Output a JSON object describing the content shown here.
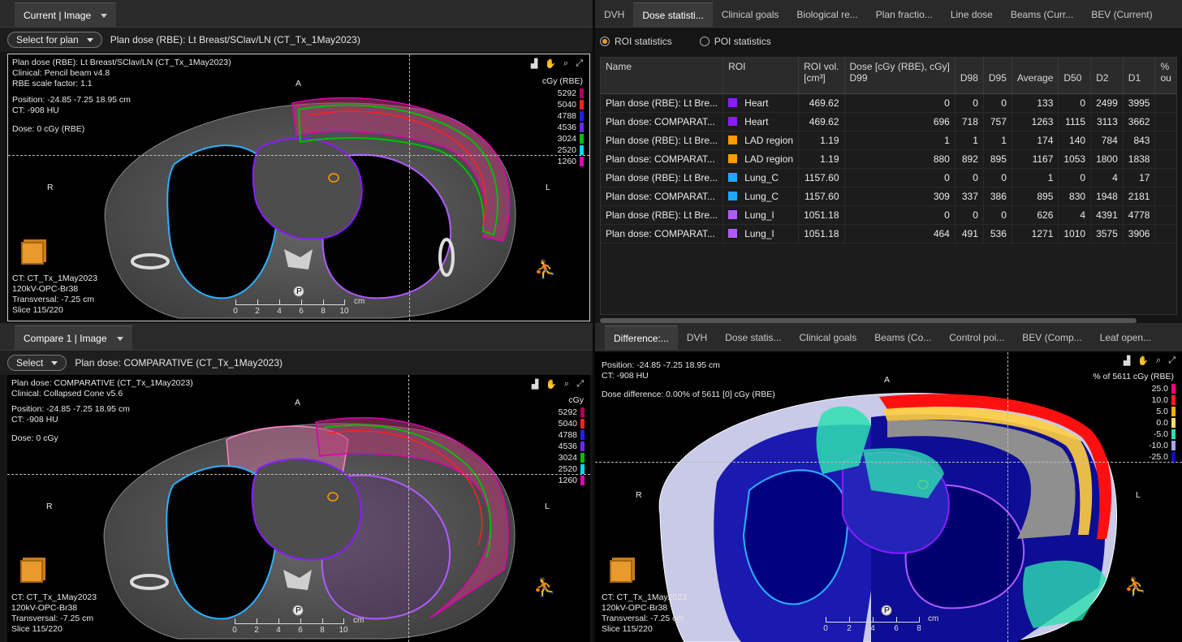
{
  "panes": {
    "current": {
      "tab": "Current | Image",
      "select_button": "Select for plan",
      "plan_label": "Plan dose (RBE): Lt Breast/SClav/LN (CT_Tx_1May2023)",
      "info": [
        "Plan dose (RBE): Lt Breast/SClav/LN (CT_Tx_1May2023)",
        "Clinical: Pencil beam v4.8",
        "RBE scale factor: 1.1"
      ],
      "position": "Position: -24.85 -7.25 18.95 cm",
      "ct_value": "CT: -908 HU",
      "dose": "Dose: 0 cGy (RBE)",
      "legend_unit": "cGy (RBE)",
      "legend": [
        {
          "value": "5292",
          "color": "#b0005a"
        },
        {
          "value": "5040",
          "color": "#ff2020"
        },
        {
          "value": "4788",
          "color": "#2020ff"
        },
        {
          "value": "4536",
          "color": "#6a2aff"
        },
        {
          "value": "3024",
          "color": "#00c000"
        },
        {
          "value": "2520",
          "color": "#00d8ff"
        },
        {
          "value": "1260",
          "color": "#e000b0"
        }
      ],
      "footer": [
        "CT: CT_Tx_1May2023",
        "120kV-OPC-Br38",
        "Transversal: -7.25 cm",
        "Slice 115/220"
      ]
    },
    "compare": {
      "tab": "Compare 1 | Image",
      "select_button": "Select",
      "plan_label": "Plan dose: COMPARATIVE (CT_Tx_1May2023)",
      "info": [
        "Plan dose: COMPARATIVE (CT_Tx_1May2023)",
        "Clinical: Collapsed Cone v5.6"
      ],
      "position": "Position: -24.85 -7.25 18.95 cm",
      "ct_value": "CT: -908 HU",
      "dose": "Dose: 0 cGy",
      "legend_unit": "cGy",
      "legend": [
        {
          "value": "5292",
          "color": "#b0005a"
        },
        {
          "value": "5040",
          "color": "#ff2020"
        },
        {
          "value": "4788",
          "color": "#2020ff"
        },
        {
          "value": "4536",
          "color": "#6a2aff"
        },
        {
          "value": "3024",
          "color": "#00c000"
        },
        {
          "value": "2520",
          "color": "#00d8ff"
        },
        {
          "value": "1260",
          "color": "#e000b0"
        }
      ],
      "footer": [
        "CT: CT_Tx_1May2023",
        "120kV-OPC-Br38",
        "Transversal: -7.25 cm",
        "Slice 115/220"
      ]
    },
    "difference": {
      "tabs": [
        "Difference:...",
        "DVH",
        "Dose statis...",
        "Clinical goals",
        "Beams (Co...",
        "Control poi...",
        "BEV (Comp...",
        "Leaf open..."
      ],
      "position": "Position: -24.85 -7.25 18.95 cm",
      "ct_value": "CT: -908 HU",
      "dose": "Dose difference: 0.00% of 5611 [0] cGy (RBE)",
      "legend_unit": "% of 5611 cGy (RBE)",
      "legend": [
        {
          "value": "25.0",
          "color": "#ff0080"
        },
        {
          "value": "10.0",
          "color": "#ff2020"
        },
        {
          "value": "5.0",
          "color": "#ffb000"
        },
        {
          "value": "0.0",
          "color": "#ffe060"
        },
        {
          "value": "-5.0",
          "color": "#2ee0b0"
        },
        {
          "value": "-10.0",
          "color": "#a0a8ff"
        },
        {
          "value": "-25.0",
          "color": "#1010c0"
        }
      ],
      "footer": [
        "CT: CT_Tx_1May2023",
        "120kV-OPC-Br38",
        "Transversal: -7.25 cm",
        "Slice 115/220"
      ]
    },
    "stats": {
      "tabs": [
        "DVH",
        "Dose statisti...",
        "Clinical goals",
        "Biological re...",
        "Plan fractio...",
        "Line dose",
        "Beams (Curr...",
        "BEV (Current)"
      ],
      "radio_roi": "ROI statistics",
      "radio_poi": "POI statistics"
    }
  },
  "orientation": {
    "anterior": "A",
    "posterior": "P",
    "right": "R",
    "left": "L"
  },
  "scale": {
    "ticks": [
      "0",
      "2",
      "4",
      "6",
      "8",
      "10"
    ],
    "unit": "cm",
    "diff_ticks": [
      "0",
      "2",
      "4",
      "6",
      "8"
    ]
  },
  "table": {
    "headers": {
      "name": "Name",
      "roi": "ROI",
      "vol": "ROI vol. [cm³]",
      "dose": "Dose [cGy (RBE), cGy]",
      "d99": "D99",
      "d98": "D98",
      "d95": "D95",
      "avg": "Average",
      "d50": "D50",
      "d2": "D2",
      "d1": "D1",
      "pct": "% ou"
    },
    "rows": [
      {
        "name": "Plan dose (RBE): Lt Bre...",
        "roi": "Heart",
        "color": "#8a1cff",
        "vol": "469.62",
        "d99": "0",
        "d98": "0",
        "d95": "0",
        "avg": "133",
        "d50": "0",
        "d2": "2499",
        "d1": "3995"
      },
      {
        "name": "Plan dose: COMPARAT...",
        "roi": "Heart",
        "color": "#8a1cff",
        "vol": "469.62",
        "d99": "696",
        "d98": "718",
        "d95": "757",
        "avg": "1263",
        "d50": "1115",
        "d2": "3113",
        "d1": "3662"
      },
      {
        "name": "Plan dose (RBE): Lt Bre...",
        "roi": "LAD region",
        "color": "#ff9a00",
        "vol": "1.19",
        "d99": "1",
        "d98": "1",
        "d95": "1",
        "avg": "174",
        "d50": "140",
        "d2": "784",
        "d1": "843"
      },
      {
        "name": "Plan dose: COMPARAT...",
        "roi": "LAD region",
        "color": "#ff9a00",
        "vol": "1.19",
        "d99": "880",
        "d98": "892",
        "d95": "895",
        "avg": "1167",
        "d50": "1053",
        "d2": "1800",
        "d1": "1838"
      },
      {
        "name": "Plan dose (RBE): Lt Bre...",
        "roi": "Lung_C",
        "color": "#1ea8ff",
        "vol": "1157.60",
        "d99": "0",
        "d98": "0",
        "d95": "0",
        "avg": "1",
        "d50": "0",
        "d2": "4",
        "d1": "17"
      },
      {
        "name": "Plan dose: COMPARAT...",
        "roi": "Lung_C",
        "color": "#1ea8ff",
        "vol": "1157.60",
        "d99": "309",
        "d98": "337",
        "d95": "386",
        "avg": "895",
        "d50": "830",
        "d2": "1948",
        "d1": "2181"
      },
      {
        "name": "Plan dose (RBE): Lt Bre...",
        "roi": "Lung_I",
        "color": "#b05aff",
        "vol": "1051.18",
        "d99": "0",
        "d98": "0",
        "d95": "0",
        "avg": "626",
        "d50": "4",
        "d2": "4391",
        "d1": "4778"
      },
      {
        "name": "Plan dose: COMPARAT...",
        "roi": "Lung_I",
        "color": "#b05aff",
        "vol": "1051.18",
        "d99": "464",
        "d98": "491",
        "d95": "536",
        "avg": "1271",
        "d50": "1010",
        "d2": "3575",
        "d1": "3906"
      }
    ]
  },
  "colors": {
    "accent": "#e89a2c",
    "heart": "#8a1cff",
    "lung_c": "#1ea8ff",
    "lung_i": "#b05aff",
    "lad": "#ff9a00"
  }
}
